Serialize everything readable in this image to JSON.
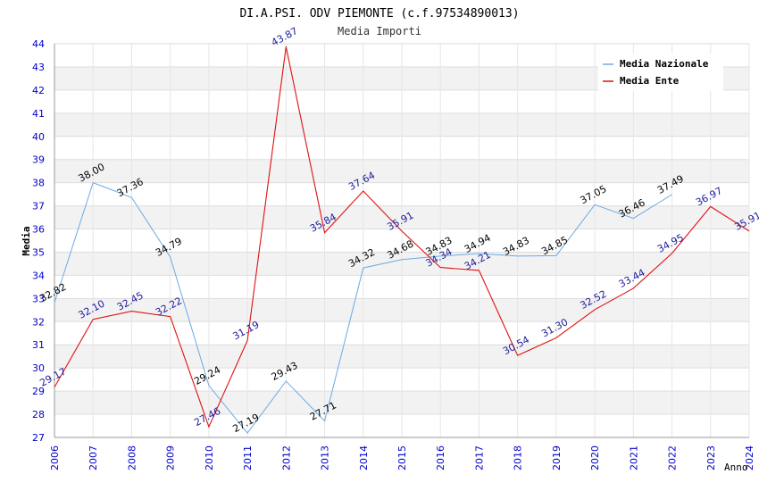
{
  "chart_data": {
    "type": "line",
    "title": "DI.A.PSI. ODV PIEMONTE (c.f.97534890013)",
    "subtitle": "Media Importi",
    "xlabel": "Anno",
    "ylabel": "Media",
    "x": [
      "2006",
      "2007",
      "2008",
      "2009",
      "2010",
      "2011",
      "2012",
      "2013",
      "2014",
      "2015",
      "2016",
      "2017",
      "2018",
      "2019",
      "2020",
      "2021",
      "2022",
      "2023",
      "2024"
    ],
    "ylim": [
      27,
      44
    ],
    "yticks": [
      "27",
      "28",
      "29",
      "30",
      "31",
      "32",
      "33",
      "34",
      "35",
      "36",
      "37",
      "38",
      "39",
      "40",
      "41",
      "42",
      "43",
      "44"
    ],
    "grid": true,
    "legend_position": "top-right",
    "series": [
      {
        "name": "Media Nazionale",
        "color": "#6aaae4",
        "label_color": "#000000",
        "values": [
          32.82,
          38.0,
          37.36,
          34.79,
          29.24,
          27.19,
          29.43,
          27.71,
          34.32,
          34.68,
          34.83,
          34.94,
          34.83,
          34.85,
          37.05,
          36.46,
          37.49,
          null,
          null
        ],
        "labels": [
          "32.82",
          "38.00",
          "37.36",
          "34.79",
          "29.24",
          "27.19",
          "29.43",
          "27.71",
          "34.32",
          "34.68",
          "34.83",
          "34.94",
          "34.83",
          "34.85",
          "37.05",
          "36.46",
          "37.49",
          "",
          ""
        ]
      },
      {
        "name": "Media Ente",
        "color": "#e01010",
        "label_color": "#1a1a9c",
        "values": [
          29.17,
          32.1,
          32.45,
          32.22,
          27.46,
          31.19,
          43.87,
          35.84,
          37.64,
          35.91,
          34.34,
          34.21,
          30.54,
          31.3,
          32.52,
          33.44,
          34.95,
          36.97,
          35.91
        ],
        "labels": [
          "29.17",
          "32.10",
          "32.45",
          "32.22",
          "27.46",
          "31.19",
          "43.87",
          "35.84",
          "37.64",
          "35.91",
          "34.34",
          "34.21",
          "30.54",
          "31.30",
          "32.52",
          "33.44",
          "34.95",
          "36.97",
          "35.91"
        ]
      }
    ]
  }
}
